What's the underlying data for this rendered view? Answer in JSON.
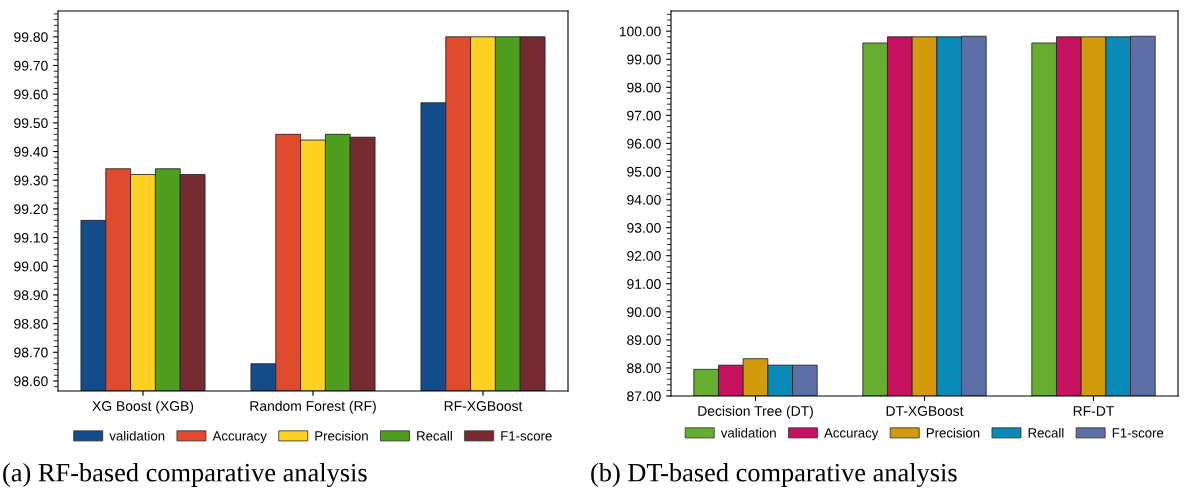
{
  "chart_data": [
    {
      "type": "bar",
      "categories": [
        "XG Boost (XGB)",
        "Random Forest (RF)",
        "RF-XGBoost"
      ],
      "series": [
        {
          "name": "validation",
          "color": "#134d8b",
          "values": [
            99.16,
            98.66,
            99.57
          ]
        },
        {
          "name": "Accuracy",
          "color": "#e04b2e",
          "values": [
            99.34,
            99.46,
            99.8
          ]
        },
        {
          "name": "Precision",
          "color": "#fdd021",
          "values": [
            99.32,
            99.44,
            99.8
          ]
        },
        {
          "name": "Recall",
          "color": "#4f9e1f",
          "values": [
            99.34,
            99.46,
            99.8
          ]
        },
        {
          "name": "F1-score",
          "color": "#762b30",
          "values": [
            99.32,
            99.45,
            99.8
          ]
        }
      ],
      "ylim": [
        98.565,
        99.89
      ],
      "yticks": [
        {
          "value": 98.6,
          "label": "98.60"
        },
        {
          "value": 98.7,
          "label": "98.70"
        },
        {
          "value": 98.8,
          "label": "98.80"
        },
        {
          "value": 98.9,
          "label": "98.90"
        },
        {
          "value": 99.0,
          "label": "99.00"
        },
        {
          "value": 99.1,
          "label": "99.10"
        },
        {
          "value": 99.2,
          "label": "99.20"
        },
        {
          "value": 99.3,
          "label": "99.30"
        },
        {
          "value": 99.4,
          "label": "99.40"
        },
        {
          "value": 99.5,
          "label": "99.50"
        },
        {
          "value": 99.6,
          "label": "99.60"
        },
        {
          "value": 99.7,
          "label": "99.70"
        },
        {
          "value": 99.8,
          "label": "99.80"
        }
      ],
      "legend": "bottom",
      "annotations": [
        "(a) RF-based comparative analysis"
      ]
    },
    {
      "type": "bar",
      "categories": [
        "Decision Tree (DT)",
        "DT-XGBoost",
        "RF-DT"
      ],
      "series": [
        {
          "name": "validation",
          "color": "#67ad2f",
          "values": [
            87.95,
            99.58,
            99.58
          ]
        },
        {
          "name": "Accuracy",
          "color": "#c5115e",
          "values": [
            88.1,
            99.8,
            99.8
          ]
        },
        {
          "name": "Precision",
          "color": "#d39a0c",
          "values": [
            88.33,
            99.8,
            99.8
          ]
        },
        {
          "name": "Recall",
          "color": "#0a8ab6",
          "values": [
            88.1,
            99.8,
            99.8
          ]
        },
        {
          "name": "F1-score",
          "color": "#5c6fa7",
          "values": [
            88.1,
            99.82,
            99.82
          ]
        }
      ],
      "ylim": [
        87.0,
        100.72
      ],
      "yticks": [
        {
          "value": 87,
          "label": "87.00"
        },
        {
          "value": 88,
          "label": "88.00"
        },
        {
          "value": 89,
          "label": "89.00"
        },
        {
          "value": 90,
          "label": "90.00"
        },
        {
          "value": 91,
          "label": "91.00"
        },
        {
          "value": 92,
          "label": "92.00"
        },
        {
          "value": 93,
          "label": "93.00"
        },
        {
          "value": 94,
          "label": "94.00"
        },
        {
          "value": 95,
          "label": "95.00"
        },
        {
          "value": 96,
          "label": "96.00"
        },
        {
          "value": 97,
          "label": "97.00"
        },
        {
          "value": 98,
          "label": "98.00"
        },
        {
          "value": 99,
          "label": "99.00"
        },
        {
          "value": 100,
          "label": "100.00"
        }
      ],
      "legend": "bottom",
      "annotations": [
        "(b) DT-based comparative analysis"
      ]
    }
  ]
}
